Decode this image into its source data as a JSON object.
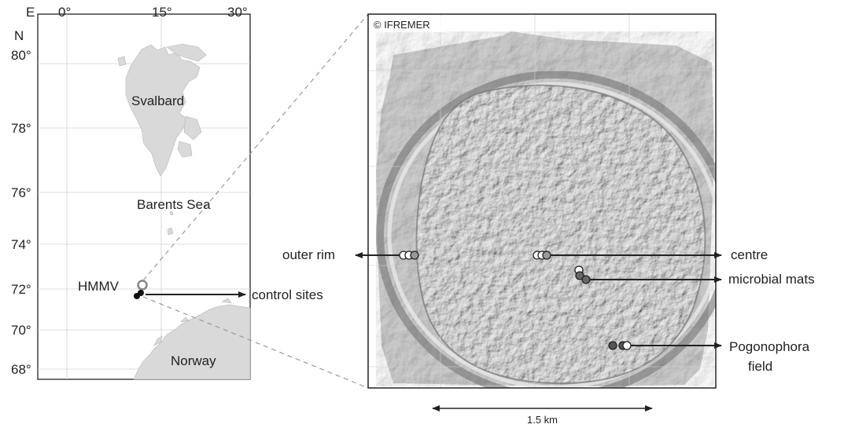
{
  "left_map": {
    "axis": {
      "lon_axis_letter": "E",
      "lat_axis_letter": "N",
      "lon_ticks": [
        "0°",
        "15°",
        "30°"
      ],
      "lat_ticks": [
        "80°",
        "78°",
        "76°",
        "74°",
        "72°",
        "70°",
        "68°"
      ]
    },
    "places": {
      "svalbard": "Svalbard",
      "barents_sea": "Barents Sea",
      "norway": "Norway",
      "hmmv": "HMMV"
    },
    "control_sites_label": "control sites"
  },
  "right_map": {
    "credit": "© IFREMER",
    "labels": {
      "outer_rim": "outer rim",
      "centre": "centre",
      "microbial_mats": "microbial mats",
      "pogonophora_line1": "Pogonophora",
      "pogonophora_line2": "field"
    },
    "scale_label": "1.5 km"
  },
  "colors": {
    "land": "#d9d9d9",
    "frame": "#222222",
    "grid": "#c8c8c8",
    "dashed_connector": "#888888",
    "bathymetry_base": "#9a9a9a"
  }
}
